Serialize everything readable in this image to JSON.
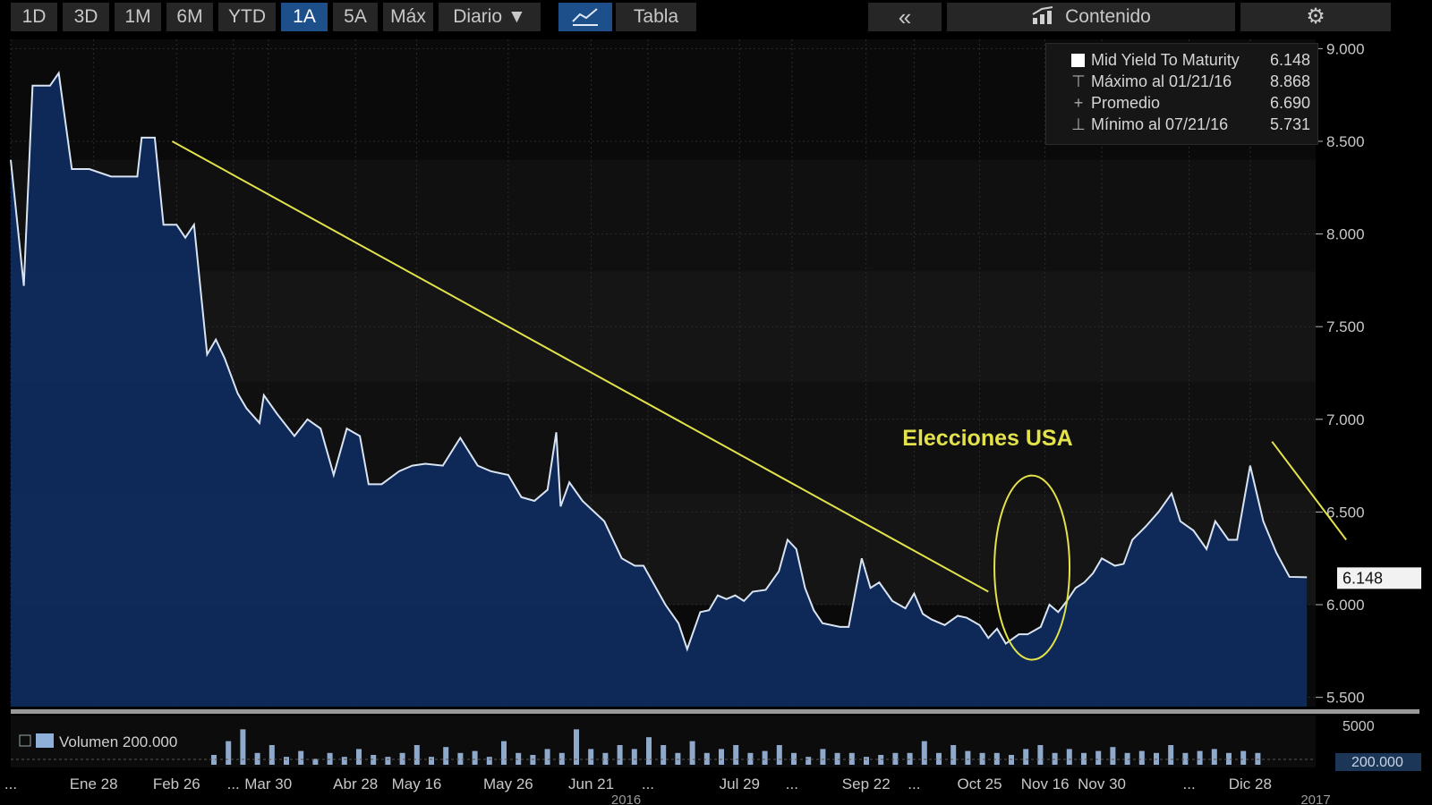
{
  "toolbar": {
    "ranges": [
      "1D",
      "3D",
      "1M",
      "6M",
      "YTD",
      "1A",
      "5A",
      "Máx"
    ],
    "active_range": "1A",
    "period_label": "Diario ▼",
    "table_label": "Tabla",
    "collapse_label": "«",
    "content_label": "Contenido",
    "settings_icon": "gear-icon"
  },
  "legend": {
    "rows": [
      {
        "label": "Mid Yield To Maturity",
        "value": "6.148"
      },
      {
        "label": "Máximo al 01/21/16",
        "value": "8.868"
      },
      {
        "label": "Promedio",
        "value": "6.690"
      },
      {
        "label": "Mínimo al 07/21/16",
        "value": "5.731"
      }
    ]
  },
  "annotation": {
    "text": "Elecciones USA"
  },
  "chart_data": {
    "type": "area",
    "y_axis": {
      "ylim": [
        5.45,
        9.05
      ],
      "ticks": [
        "9.000",
        "8.500",
        "8.000",
        "7.500",
        "7.000",
        "6.500",
        "6.000",
        "5.500"
      ],
      "tick_values": [
        9.0,
        8.5,
        8.0,
        7.5,
        7.0,
        6.5,
        6.0,
        5.5
      ]
    },
    "last_value_label": "6.148",
    "x_labels": [
      "...",
      "Ene 28",
      "Feb 26",
      "...",
      "Mar 30",
      "Abr 28",
      "May 16",
      "May 26",
      "Jun 21",
      "...",
      "Jul 29",
      "...",
      "Sep 22",
      "...",
      "Oct 25",
      "Nov 16",
      "Nov 30",
      "...",
      "Dic 28"
    ],
    "x_label_index": [
      0,
      19,
      38,
      51,
      59,
      79,
      93,
      114,
      133,
      146,
      167,
      179,
      196,
      207,
      222,
      237,
      250,
      270,
      284
    ],
    "year_labels": [
      "2016",
      "2017"
    ],
    "year_label_index": [
      141,
      299
    ],
    "n_points": 300,
    "series": [
      {
        "name": "Mid Yield To Maturity",
        "color": "#d9e4f2",
        "fill": "#0f2a5c",
        "values": [
          8.4,
          7.72,
          8.8,
          8.8,
          8.868,
          8.35,
          8.35,
          8.31,
          8.31,
          8.52,
          8.52,
          8.05,
          8.05,
          7.98,
          8.05,
          7.35,
          7.43,
          7.33,
          7.14,
          7.06,
          6.98,
          7.13,
          7.03,
          6.91,
          7.0,
          6.95,
          6.7,
          6.95,
          6.91,
          6.65,
          6.65,
          6.72,
          6.75,
          6.76,
          6.75,
          6.9,
          6.75,
          6.72,
          6.7,
          6.58,
          6.56,
          6.62,
          6.93,
          6.53,
          6.66,
          6.56,
          6.45,
          6.25,
          6.21,
          6.21,
          6.0,
          5.9,
          5.76,
          5.96,
          5.97,
          6.05,
          6.03,
          6.05,
          6.02,
          6.07,
          6.08,
          6.18,
          6.35,
          6.3,
          6.09,
          5.97,
          5.9,
          5.88,
          5.88,
          6.25,
          6.09,
          6.12,
          6.02,
          5.98,
          6.06,
          5.95,
          5.92,
          5.89,
          5.94,
          5.93,
          5.89,
          5.82,
          5.87,
          5.79,
          5.84,
          5.84,
          5.88,
          6.0,
          5.96,
          6.02,
          6.09,
          6.12,
          6.17,
          6.25,
          6.21,
          6.22,
          6.35,
          6.42,
          6.5,
          6.6,
          6.45,
          6.4,
          6.3,
          6.45,
          6.35,
          6.35,
          6.75,
          6.45,
          6.28,
          6.15,
          6.148
        ],
        "value_index": [
          0,
          3,
          5,
          9,
          11,
          14,
          18,
          23,
          29,
          30,
          33,
          35,
          38,
          40,
          42,
          45,
          47,
          49,
          52,
          54,
          57,
          58,
          61,
          65,
          68,
          71,
          74,
          77,
          80,
          82,
          85,
          89,
          92,
          95,
          99,
          103,
          107,
          110,
          114,
          117,
          120,
          123,
          125,
          126,
          128,
          131,
          136,
          140,
          143,
          145,
          150,
          153,
          155,
          158,
          160,
          162,
          164,
          166,
          168,
          170,
          173,
          176,
          178,
          180,
          182,
          184,
          186,
          190,
          192,
          195,
          197,
          199,
          202,
          205,
          207,
          209,
          211,
          214,
          217,
          219,
          222,
          224,
          226,
          228,
          231,
          233,
          236,
          238,
          240,
          242,
          244,
          246,
          248,
          250,
          253,
          255,
          257,
          260,
          263,
          266,
          268,
          271,
          274,
          276,
          279,
          281,
          284,
          287,
          290,
          293,
          297
        ]
      }
    ],
    "volume": {
      "label": "Volumen 200.000",
      "ticks": [
        "5000",
        "200.000"
      ],
      "values": [
        0.25,
        0.6,
        0.9,
        0.3,
        0.5,
        0.2,
        0.35,
        0.15,
        0.3,
        0.2,
        0.4,
        0.25,
        0.2,
        0.3,
        0.5,
        0.2,
        0.45,
        0.3,
        0.35,
        0.2,
        0.6,
        0.3,
        0.25,
        0.4,
        0.3,
        0.9,
        0.4,
        0.3,
        0.5,
        0.4,
        0.7,
        0.5,
        0.3,
        0.6,
        0.3,
        0.4,
        0.5,
        0.3,
        0.35,
        0.5,
        0.3,
        0.2,
        0.4,
        0.3,
        0.3,
        0.2,
        0.25,
        0.3,
        0.3,
        0.6,
        0.3,
        0.5,
        0.35,
        0.3,
        0.3,
        0.25,
        0.4,
        0.5,
        0.3,
        0.4,
        0.3,
        0.35,
        0.45,
        0.3,
        0.35,
        0.3,
        0.5,
        0.3,
        0.35,
        0.4,
        0.3,
        0.35,
        0.3
      ]
    }
  }
}
